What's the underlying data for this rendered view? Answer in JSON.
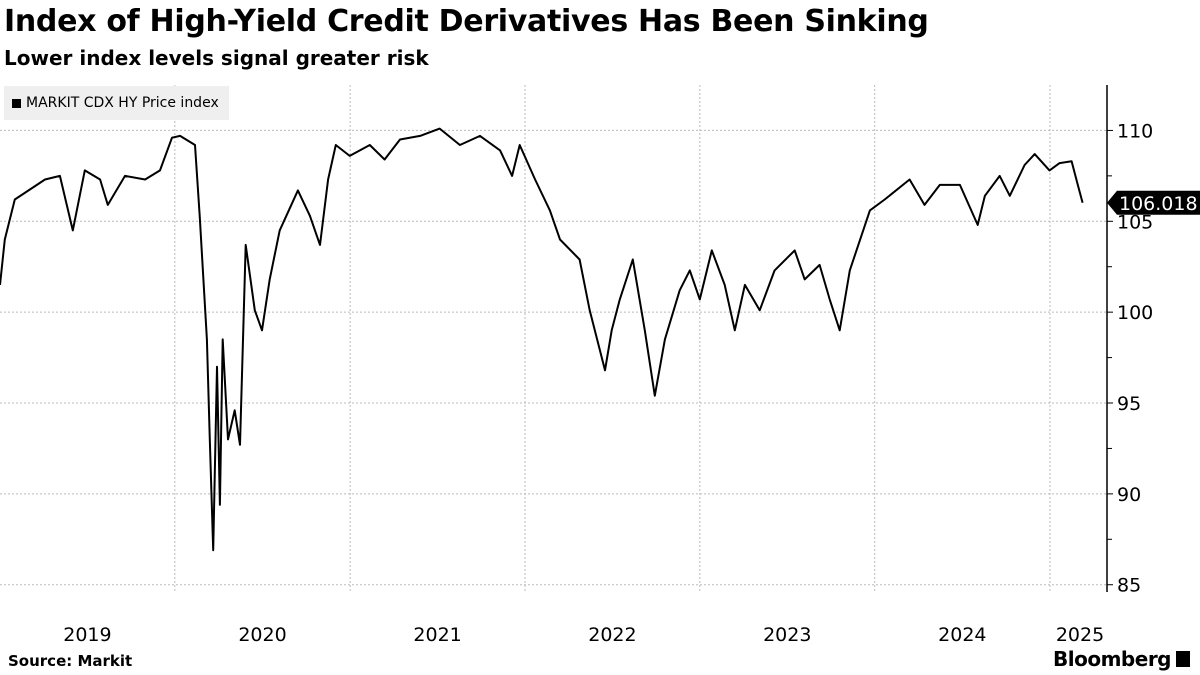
{
  "chart_data": {
    "type": "line",
    "title": "Index of High-Yield Credit Derivatives Has Been Sinking",
    "subtitle": "Lower index levels signal greater risk",
    "source": "Source: Markit",
    "brand": "Bloomberg",
    "legend_position": "top-left",
    "grid": true,
    "xlim": [
      "2019-01-01",
      "2025-04-30"
    ],
    "ylim": [
      84.6,
      112.5
    ],
    "yticks": [
      85,
      90,
      95,
      100,
      105,
      110
    ],
    "xtick_labels": [
      "2019",
      "2020",
      "2021",
      "2022",
      "2023",
      "2024",
      "2025"
    ],
    "last_value_label": "106.018",
    "series": [
      {
        "name": "MARKIT CDX HY Price index",
        "color": "#000000",
        "points": [
          [
            "2019-01-01",
            101.5
          ],
          [
            "2019-01-11",
            104.0
          ],
          [
            "2019-02-01",
            106.2
          ],
          [
            "2019-04-05",
            107.3
          ],
          [
            "2019-05-06",
            107.5
          ],
          [
            "2019-06-02",
            104.5
          ],
          [
            "2019-06-27",
            107.8
          ],
          [
            "2019-07-29",
            107.3
          ],
          [
            "2019-08-14",
            105.9
          ],
          [
            "2019-09-19",
            107.5
          ],
          [
            "2019-10-31",
            107.3
          ],
          [
            "2019-12-01",
            107.8
          ],
          [
            "2019-12-26",
            109.6
          ],
          [
            "2020-01-12",
            109.7
          ],
          [
            "2020-02-12",
            109.2
          ],
          [
            "2020-02-22",
            105.3
          ],
          [
            "2020-03-08",
            98.5
          ],
          [
            "2020-03-14",
            93.0
          ],
          [
            "2020-03-21",
            86.9
          ],
          [
            "2020-03-29",
            97.0
          ],
          [
            "2020-04-04",
            89.4
          ],
          [
            "2020-04-10",
            98.5
          ],
          [
            "2020-04-21",
            93.0
          ],
          [
            "2020-05-05",
            94.6
          ],
          [
            "2020-05-16",
            92.7
          ],
          [
            "2020-05-28",
            103.7
          ],
          [
            "2020-06-16",
            100.1
          ],
          [
            "2020-07-01",
            99.0
          ],
          [
            "2020-07-17",
            101.8
          ],
          [
            "2020-08-07",
            104.5
          ],
          [
            "2020-09-14",
            106.7
          ],
          [
            "2020-10-09",
            105.3
          ],
          [
            "2020-10-30",
            103.7
          ],
          [
            "2020-11-16",
            107.3
          ],
          [
            "2020-12-02",
            109.2
          ],
          [
            "2020-12-31",
            108.6
          ],
          [
            "2021-02-11",
            109.2
          ],
          [
            "2021-03-14",
            108.4
          ],
          [
            "2021-04-15",
            109.5
          ],
          [
            "2021-05-27",
            109.7
          ],
          [
            "2021-07-07",
            110.1
          ],
          [
            "2021-08-18",
            109.2
          ],
          [
            "2021-09-29",
            109.7
          ],
          [
            "2021-11-10",
            108.9
          ],
          [
            "2021-12-05",
            107.5
          ],
          [
            "2021-12-21",
            109.2
          ],
          [
            "2022-01-22",
            107.3
          ],
          [
            "2022-02-22",
            105.6
          ],
          [
            "2022-03-15",
            104.0
          ],
          [
            "2022-04-25",
            102.9
          ],
          [
            "2022-05-16",
            100.1
          ],
          [
            "2022-06-17",
            96.8
          ],
          [
            "2022-07-01",
            99.0
          ],
          [
            "2022-07-18",
            100.7
          ],
          [
            "2022-08-14",
            102.9
          ],
          [
            "2022-09-08",
            99.0
          ],
          [
            "2022-09-29",
            95.4
          ],
          [
            "2022-10-20",
            98.5
          ],
          [
            "2022-11-20",
            101.2
          ],
          [
            "2022-12-11",
            102.3
          ],
          [
            "2023-01-01",
            100.7
          ],
          [
            "2023-01-26",
            103.4
          ],
          [
            "2023-02-22",
            101.5
          ],
          [
            "2023-03-15",
            99.0
          ],
          [
            "2023-04-05",
            101.5
          ],
          [
            "2023-05-06",
            100.1
          ],
          [
            "2023-06-06",
            102.3
          ],
          [
            "2023-07-18",
            103.4
          ],
          [
            "2023-08-08",
            101.8
          ],
          [
            "2023-09-08",
            102.6
          ],
          [
            "2023-09-29",
            100.7
          ],
          [
            "2023-10-20",
            99.0
          ],
          [
            "2023-11-10",
            102.3
          ],
          [
            "2023-12-22",
            105.6
          ],
          [
            "2024-01-22",
            106.2
          ],
          [
            "2024-03-14",
            107.3
          ],
          [
            "2024-04-14",
            105.9
          ],
          [
            "2024-05-16",
            107.0
          ],
          [
            "2024-06-27",
            107.0
          ],
          [
            "2024-08-03",
            104.8
          ],
          [
            "2024-08-18",
            106.4
          ],
          [
            "2024-09-18",
            107.5
          ],
          [
            "2024-10-09",
            106.4
          ],
          [
            "2024-11-09",
            108.1
          ],
          [
            "2024-11-30",
            108.7
          ],
          [
            "2024-12-31",
            107.8
          ],
          [
            "2025-01-21",
            108.2
          ],
          [
            "2025-02-15",
            108.3
          ],
          [
            "2025-02-28",
            107.0
          ],
          [
            "2025-03-10",
            106.018
          ]
        ]
      }
    ]
  }
}
